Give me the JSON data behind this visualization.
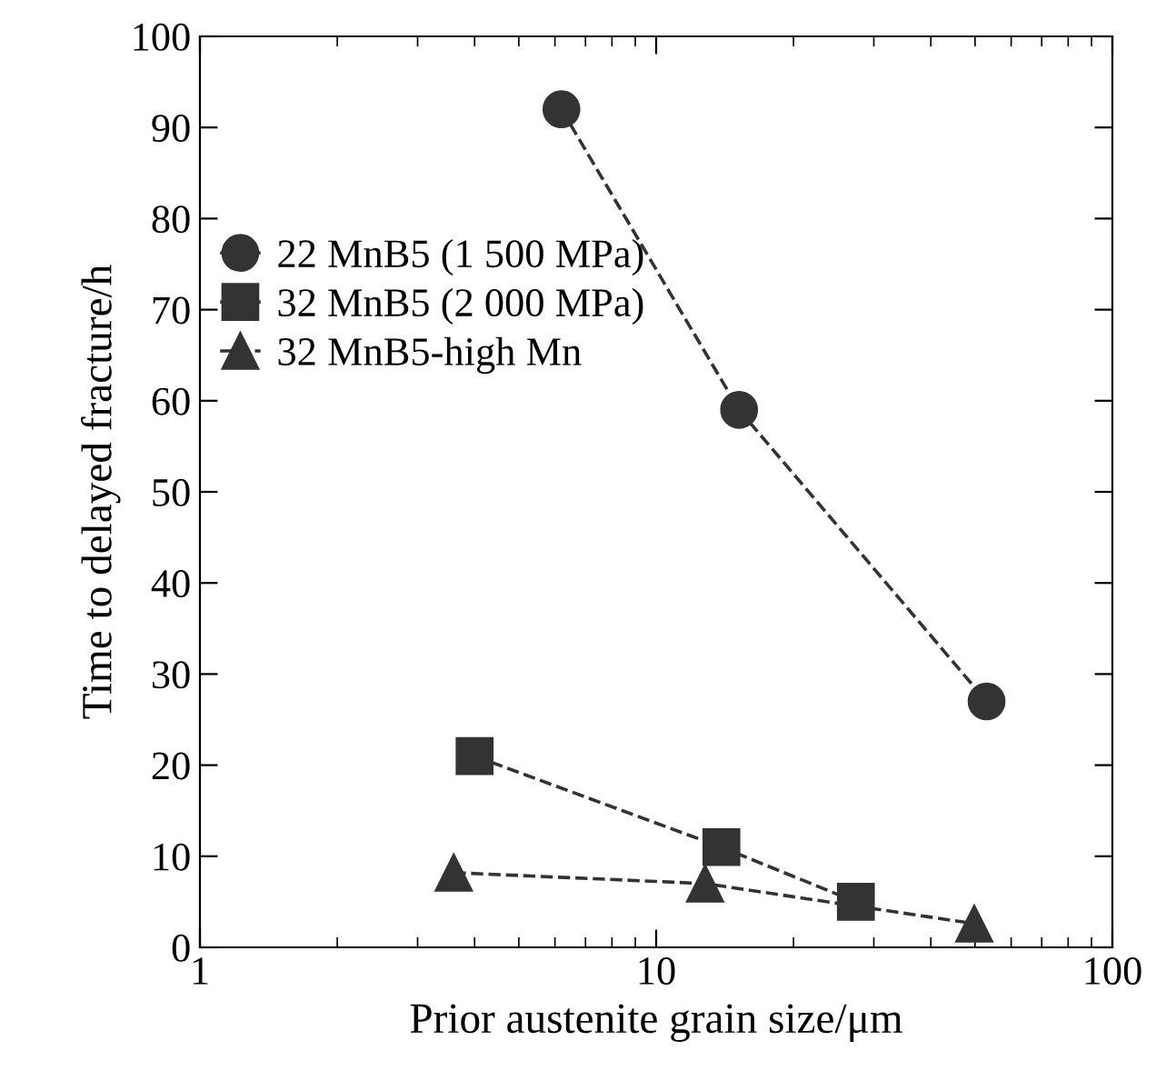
{
  "chart_data": {
    "type": "line",
    "xlabel": "Prior austenite grain size/μm",
    "ylabel": "Time to delayed fracture/h",
    "log": "x",
    "xlim": [
      1,
      100
    ],
    "xticks": [
      1,
      10,
      100
    ],
    "ylim": [
      0,
      100
    ],
    "yticks": [
      0,
      10,
      20,
      30,
      40,
      50,
      60,
      70,
      80,
      90,
      100
    ],
    "grid": false,
    "legend": "top left",
    "line_style": "dashed",
    "series": [
      {
        "name": "22 MnB5 (1 500 MPa)",
        "color": "#333333",
        "marker": "circle",
        "x": [
          6.2,
          15.2,
          53
        ],
        "values": [
          92,
          59,
          27
        ]
      },
      {
        "name": "32 MnB5 (2 000 MPa)",
        "color": "#333333",
        "marker": "square",
        "x": [
          4.0,
          13.9,
          27.4
        ],
        "values": [
          21,
          11,
          5
        ]
      },
      {
        "name": "32 MnB5-high Mn",
        "color": "#333333",
        "marker": "triangle",
        "x": [
          3.6,
          12.8,
          49.8
        ],
        "values": [
          8.2,
          7,
          2.6
        ]
      }
    ]
  }
}
